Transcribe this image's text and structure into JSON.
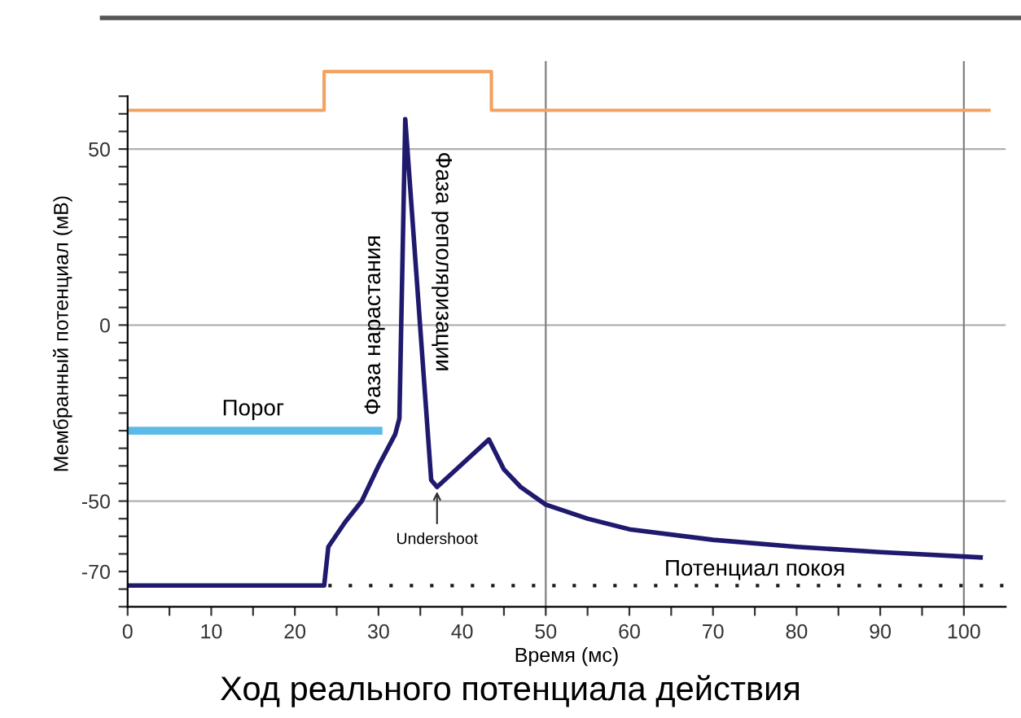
{
  "chart_data": {
    "type": "line",
    "title": "Ход реального потенциала действия",
    "xlabel": "Время (мс)",
    "ylabel": "Мембранный потенциал (мВ)",
    "xlim": [
      0,
      105
    ],
    "ylim": [
      -80,
      75
    ],
    "xticks": [
      0,
      {
        "value": 5,
        "label": null
      },
      10,
      {
        "value": 15,
        "label": null
      },
      20,
      {
        "value": 25,
        "label": null
      },
      30,
      {
        "value": 35,
        "label": null
      },
      40,
      {
        "value": 45,
        "label": null
      },
      50,
      {
        "value": 55,
        "label": null
      },
      60,
      {
        "value": 65,
        "label": null
      },
      70,
      {
        "value": 75,
        "label": null
      },
      80,
      {
        "value": 85,
        "label": null
      },
      90,
      {
        "value": 95,
        "label": null
      },
      100
    ],
    "yticks": [
      {
        "value": -80,
        "label": null
      },
      {
        "value": -75,
        "label": null
      },
      -70,
      {
        "value": -65,
        "label": null
      },
      {
        "value": -60,
        "label": null
      },
      {
        "value": -55,
        "label": null
      },
      -50,
      {
        "value": -45,
        "label": null
      },
      {
        "value": -40,
        "label": null
      },
      {
        "value": -35,
        "label": null
      },
      {
        "value": -30,
        "label": null
      },
      {
        "value": -25,
        "label": null
      },
      {
        "value": -20,
        "label": null
      },
      {
        "value": -15,
        "label": null
      },
      {
        "value": -10,
        "label": null
      },
      {
        "value": -5,
        "label": null
      },
      0,
      {
        "value": 5,
        "label": null
      },
      {
        "value": 10,
        "label": null
      },
      {
        "value": 15,
        "label": null
      },
      {
        "value": 20,
        "label": null
      },
      {
        "value": 25,
        "label": null
      },
      {
        "value": 30,
        "label": null
      },
      {
        "value": 35,
        "label": null
      },
      {
        "value": 40,
        "label": null
      },
      {
        "value": 45,
        "label": null
      },
      50,
      {
        "value": 55,
        "label": null
      },
      {
        "value": 60,
        "label": null
      },
      {
        "value": 65,
        "label": null
      }
    ],
    "grid": false,
    "legend": false,
    "ref_lines": [
      {
        "axis": "y",
        "value": 50,
        "color": "#b0b0b0"
      },
      {
        "axis": "y",
        "value": 0,
        "color": "#b0b0b0"
      },
      {
        "axis": "y",
        "value": -50,
        "color": "#b0b0b0"
      },
      {
        "axis": "x",
        "value": 50,
        "color": "#808080"
      },
      {
        "axis": "x",
        "value": 100,
        "color": "#808080"
      }
    ],
    "series": [
      {
        "color": "#1f1a6e",
        "x": [
          0,
          23.5,
          24,
          26,
          28,
          30,
          32,
          32.5,
          33.2,
          36.3,
          37,
          43.2,
          45,
          47,
          50,
          55,
          60,
          70,
          80,
          90,
          102
        ],
        "values": [
          -74,
          -74,
          -63,
          -56,
          -50,
          -40,
          -31,
          -26.5,
          58.5,
          -44,
          -46,
          -32.5,
          -41,
          -46,
          -51,
          -55,
          -58,
          -61,
          -63,
          -64.5,
          -66
        ]
      },
      {
        "color": "#f2a261",
        "x": [
          0,
          23.5,
          23.5,
          43.5,
          43.5,
          103
        ],
        "values": [
          61,
          61,
          72,
          72,
          61,
          61
        ]
      },
      {
        "color": "#5bbbe8",
        "x": [
          0,
          30
        ],
        "values": [
          -30,
          -30
        ]
      },
      {
        "color": "#1a1a1a",
        "x": [
          24,
          105
        ],
        "values": [
          -74,
          -74
        ],
        "line_style": "dotted"
      }
    ],
    "annotations": [
      "Фаза нарастания",
      "Фаза реполяризации",
      {
        "text": "Undershoot",
        "x": 37,
        "y": -46
      },
      "Порог",
      "Потенциал покоя"
    ]
  }
}
